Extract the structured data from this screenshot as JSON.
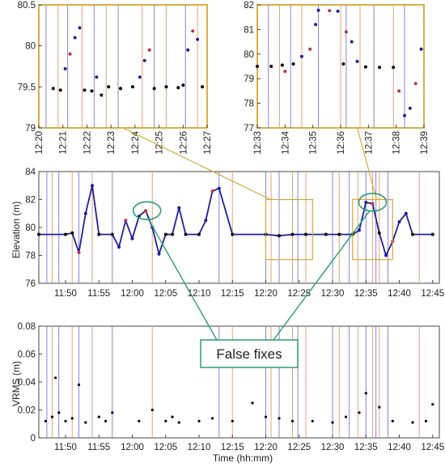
{
  "colors": {
    "axes": "#333333",
    "vline_orange": "#e8a27a",
    "vline_purple": "#8f7fe0",
    "float_points": "#1f1f9a",
    "fixed_points": "#000000",
    "mixed_points": "#c0323c",
    "zoom_box": "#d9a632",
    "false_fix_ring": "#2a9d72",
    "callout_border": "#2a9d72"
  },
  "callout": {
    "label": "False fixes"
  },
  "chart_data": [
    {
      "id": "zoom-left",
      "type": "scatter",
      "title": "",
      "xlabel": "",
      "ylabel": "",
      "xlim": [
        "12:20",
        "12:27"
      ],
      "ylim": [
        79,
        80.5
      ],
      "yticks": [
        79,
        79.5,
        80,
        80.5
      ],
      "xtick_labels": [
        "12:20",
        "12:21",
        "12:22",
        "12:23",
        "12:24",
        "12:25",
        "12:26",
        "12:27"
      ],
      "grid": false,
      "series": [
        {
          "values": [
            [
              "12:20.6",
              79.48
            ],
            [
              "12:20.9",
              79.46
            ],
            [
              "12:21.1",
              79.72
            ],
            [
              "12:21.3",
              79.9
            ],
            [
              "12:21.5",
              80.1
            ],
            [
              "12:21.7",
              80.22
            ],
            [
              "12:21.9",
              79.46
            ],
            [
              "12:22.2",
              79.45
            ],
            [
              "12:22.4",
              79.62
            ],
            [
              "12:22.6",
              79.4
            ],
            [
              "12:22.9",
              79.5
            ],
            [
              "12:23.4",
              79.48
            ],
            [
              "12:23.9",
              79.5
            ],
            [
              "12:24.2",
              79.62
            ],
            [
              "12:24.4",
              79.82
            ],
            [
              "12:24.6",
              79.95
            ],
            [
              "12:24.8",
              79.48
            ],
            [
              "12:25.3",
              79.5
            ],
            [
              "12:25.8",
              79.49
            ],
            [
              "12:26.0",
              79.52
            ],
            [
              "12:26.2",
              79.95
            ],
            [
              "12:26.4",
              80.18
            ],
            [
              "12:26.6",
              80.08
            ],
            [
              "12:26.8",
              79.5
            ]
          ]
        }
      ],
      "vlines": [
        "12:20.3",
        "12:20.8",
        "12:21.2",
        "12:21.8",
        "12:22.3",
        "12:22.8",
        "12:23.3",
        "12:24.3",
        "12:24.8",
        "12:25.3",
        "12:26.1",
        "12:26.6"
      ]
    },
    {
      "id": "zoom-right",
      "type": "scatter",
      "title": "",
      "xlabel": "",
      "ylabel": "",
      "xlim": [
        "12:33",
        "12:39"
      ],
      "ylim": [
        77,
        82
      ],
      "yticks": [
        77,
        78,
        79,
        80,
        81,
        82
      ],
      "xtick_labels": [
        "12:33",
        "12:34",
        "12:35",
        "12:36",
        "12:37",
        "12:38",
        "12:39"
      ],
      "grid": false,
      "series": [
        {
          "values": [
            [
              "12:33.0",
              79.5
            ],
            [
              "12:33.5",
              79.5
            ],
            [
              "12:33.9",
              79.55
            ],
            [
              "12:34.0",
              79.3
            ],
            [
              "12:34.3",
              79.6
            ],
            [
              "12:34.6",
              79.9
            ],
            [
              "12:34.9",
              80.2
            ],
            [
              "12:35.1",
              81.2
            ],
            [
              "12:35.2",
              81.78
            ],
            [
              "12:35.6",
              81.76
            ],
            [
              "12:35.9",
              81.74
            ],
            [
              "12:36.1",
              79.6
            ],
            [
              "12:36.2",
              80.9
            ],
            [
              "12:36.4",
              80.5
            ],
            [
              "12:36.6",
              79.7
            ],
            [
              "12:36.9",
              79.48
            ],
            [
              "12:37.4",
              79.46
            ],
            [
              "12:37.9",
              79.46
            ],
            [
              "12:38.1",
              78.5
            ],
            [
              "12:38.3",
              77.5
            ],
            [
              "12:38.5",
              77.8
            ],
            [
              "12:38.7",
              78.8
            ],
            [
              "12:38.9",
              80.2
            ]
          ]
        }
      ],
      "vlines": [
        "12:33.4",
        "12:33.8",
        "12:34.2",
        "12:34.6",
        "12:35.2",
        "12:36.0",
        "12:36.2",
        "12:36.7",
        "12:37.2",
        "12:37.9",
        "12:38.3"
      ]
    },
    {
      "id": "elevation",
      "type": "scatter",
      "title": "",
      "xlabel": "",
      "ylabel": "Elevation (m)",
      "xlim": [
        "11:46",
        "12:46"
      ],
      "ylim": [
        76,
        84
      ],
      "yticks": [
        76,
        78,
        80,
        82,
        84
      ],
      "xtick_labels": [
        "11:50",
        "11:55",
        "12:00",
        "12:05",
        "12:10",
        "12:15",
        "12:20",
        "12:25",
        "12:30",
        "12:35",
        "12:40",
        "12:45"
      ],
      "grid": false,
      "series": [
        {
          "values": [
            [
              "11:46",
              79.5
            ],
            [
              "11:50",
              79.5
            ],
            [
              "11:51",
              79.6
            ],
            [
              "11:52",
              78.2
            ],
            [
              "11:53",
              81
            ],
            [
              "11:54",
              83
            ],
            [
              "11:55",
              79.5
            ],
            [
              "11:57",
              79.5
            ],
            [
              "11:58",
              78.6
            ],
            [
              "11:59",
              80.5
            ],
            [
              "12:00",
              79.2
            ],
            [
              "12:01",
              80.8
            ],
            [
              "12:02",
              81.2
            ],
            [
              "12:03",
              80
            ],
            [
              "12:04",
              78.1
            ],
            [
              "12:05",
              79.5
            ],
            [
              "12:06",
              79.5
            ],
            [
              "12:07",
              81.4
            ],
            [
              "12:08",
              79.5
            ],
            [
              "12:10",
              79.5
            ],
            [
              "12:11",
              80.5
            ],
            [
              "12:12",
              82.6
            ],
            [
              "12:13",
              82.8
            ],
            [
              "12:15",
              79.5
            ],
            [
              "12:20",
              79.5
            ],
            [
              "12:22",
              79.4
            ],
            [
              "12:24",
              79.5
            ],
            [
              "12:26",
              79.5
            ],
            [
              "12:29",
              79.5
            ],
            [
              "12:31",
              79.5
            ],
            [
              "12:33",
              79.5
            ],
            [
              "12:34",
              79.8
            ],
            [
              "12:35",
              81.8
            ],
            [
              "12:36",
              81.7
            ],
            [
              "12:37",
              79.6
            ],
            [
              "12:38",
              78
            ],
            [
              "12:39",
              79
            ],
            [
              "12:40",
              80.4
            ],
            [
              "12:41",
              81
            ],
            [
              "12:42",
              79.5
            ],
            [
              "12:45",
              79.5
            ]
          ]
        }
      ],
      "vlines": [
        "11:47.2",
        "11:48",
        "11:49",
        "11:51",
        "11:52",
        "11:54",
        "11:57",
        "12:03",
        "12:13",
        "12:15",
        "12:20",
        "12:20.8",
        "12:22",
        "12:24",
        "12:24.8",
        "12:26",
        "12:30",
        "12:31",
        "12:32.5",
        "12:33.8",
        "12:35",
        "12:36",
        "12:36.5",
        "12:37",
        "12:38.3",
        "12:43"
      ]
    },
    {
      "id": "vrms",
      "type": "scatter",
      "title": "",
      "xlabel": "Time (hh:mm)",
      "ylabel": "VRMS (m)",
      "xlim": [
        "11:46",
        "12:46"
      ],
      "ylim": [
        0,
        0.08
      ],
      "yticks": [
        0,
        0.02,
        0.04,
        0.06,
        0.08
      ],
      "xtick_labels": [
        "11:50",
        "11:55",
        "12:00",
        "12:05",
        "12:10",
        "12:15",
        "12:20",
        "12:25",
        "12:30",
        "12:35",
        "12:40",
        "12:45"
      ],
      "grid": false,
      "series": [
        {
          "values": [
            [
              "11:47",
              0.012
            ],
            [
              "11:48",
              0.015
            ],
            [
              "11:48.5",
              0.043
            ],
            [
              "11:49",
              0.018
            ],
            [
              "11:50",
              0.012
            ],
            [
              "11:51",
              0.014
            ],
            [
              "11:52",
              0.038
            ],
            [
              "11:53",
              0.011
            ],
            [
              "11:55",
              0.015
            ],
            [
              "11:56",
              0.012
            ],
            [
              "11:57",
              0.018
            ],
            [
              "12:01",
              0.012
            ],
            [
              "12:03",
              0.02
            ],
            [
              "12:05",
              0.012
            ],
            [
              "12:06",
              0.015
            ],
            [
              "12:07",
              0.011
            ],
            [
              "12:10",
              0.012
            ],
            [
              "12:12",
              0.014
            ],
            [
              "12:15",
              0.012
            ],
            [
              "12:18",
              0.025
            ],
            [
              "12:20",
              0.015
            ],
            [
              "12:22",
              0.014
            ],
            [
              "12:24",
              0.012
            ],
            [
              "12:27",
              0.012
            ],
            [
              "12:30",
              0.011
            ],
            [
              "12:32",
              0.015
            ],
            [
              "12:34",
              0.018
            ],
            [
              "12:35",
              0.032
            ],
            [
              "12:37",
              0.022
            ],
            [
              "12:39",
              0.012
            ],
            [
              "12:42",
              0.011
            ],
            [
              "12:44",
              0.012
            ],
            [
              "12:45",
              0.024
            ]
          ]
        }
      ],
      "vlines": [
        "11:47.2",
        "11:48",
        "11:49",
        "11:51",
        "11:52",
        "11:54",
        "11:57",
        "12:03",
        "12:13",
        "12:15",
        "12:20",
        "12:20.8",
        "12:22",
        "12:24",
        "12:24.8",
        "12:26",
        "12:30",
        "12:31",
        "12:32.5",
        "12:33.8",
        "12:35",
        "12:36",
        "12:36.5",
        "12:37",
        "12:38.3",
        "12:43"
      ]
    }
  ]
}
